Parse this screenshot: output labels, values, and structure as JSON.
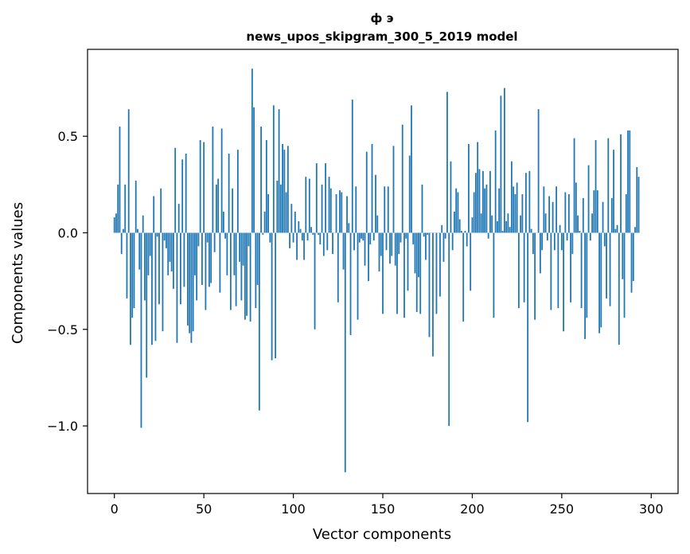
{
  "chart_data": {
    "type": "bar",
    "title_line1": "ф э",
    "title_line2": "news_upos_skipgram_300_5_2019 model",
    "xlabel": "Vector components",
    "ylabel": "Components values",
    "xlim": [
      -15,
      315
    ],
    "ylim": [
      -1.35,
      0.95
    ],
    "xticks": [
      0,
      50,
      100,
      150,
      200,
      250,
      300
    ],
    "xtick_labels": [
      "0",
      "50",
      "100",
      "150",
      "200",
      "250",
      "300"
    ],
    "yticks": [
      -1.0,
      -0.5,
      0.0,
      0.5
    ],
    "ytick_labels": [
      "−1.0",
      "−0.5",
      "0.0",
      "0.5"
    ],
    "bar_color": "#1f77b4",
    "values": [
      0.08,
      0.1,
      0.25,
      0.55,
      -0.11,
      0.02,
      0.25,
      -0.34,
      0.64,
      -0.58,
      -0.44,
      -0.39,
      0.27,
      0.02,
      -0.19,
      -1.01,
      0.09,
      -0.35,
      -0.75,
      -0.22,
      -0.12,
      -0.58,
      0.19,
      -0.56,
      -0.02,
      -0.37,
      0.23,
      -0.51,
      -0.04,
      -0.08,
      -0.22,
      -0.15,
      -0.2,
      -0.29,
      0.44,
      -0.57,
      0.15,
      -0.37,
      0.38,
      -0.28,
      0.41,
      -0.48,
      -0.52,
      -0.57,
      -0.51,
      -0.22,
      -0.35,
      -0.07,
      0.48,
      -0.27,
      0.47,
      -0.4,
      -0.05,
      -0.28,
      -0.26,
      0.55,
      -0.1,
      0.25,
      0.28,
      -0.31,
      0.54,
      0.11,
      -0.03,
      -0.22,
      0.41,
      -0.4,
      0.23,
      -0.22,
      -0.38,
      0.43,
      -0.15,
      -0.35,
      -0.17,
      -0.45,
      -0.43,
      -0.07,
      -0.46,
      0.85,
      0.65,
      -0.39,
      -0.27,
      -0.92,
      0.55,
      -0.01,
      0.11,
      0.48,
      0.2,
      -0.05,
      -0.66,
      0.66,
      -0.65,
      0.27,
      0.64,
      0.25,
      0.46,
      0.43,
      0.21,
      0.45,
      -0.08,
      0.15,
      -0.05,
      0.11,
      -0.14,
      0.06,
      0.02,
      -0.04,
      -0.14,
      0.29,
      -0.04,
      0.28,
      0.03,
      -0.01,
      -0.5,
      0.36,
      -0.01,
      -0.06,
      0.25,
      -0.12,
      0.36,
      -0.09,
      0.29,
      0.23,
      -0.11,
      0.0,
      0.2,
      -0.36,
      0.22,
      0.21,
      -0.19,
      -1.24,
      0.19,
      0.05,
      -0.53,
      0.69,
      -0.09,
      0.24,
      -0.45,
      -0.05,
      -0.03,
      -0.04,
      -0.17,
      0.42,
      -0.25,
      -0.06,
      0.46,
      -0.04,
      0.3,
      0.09,
      -0.2,
      -0.12,
      -0.42,
      0.24,
      -0.09,
      0.24,
      -0.16,
      -0.12,
      0.45,
      -0.17,
      -0.42,
      -0.11,
      -0.05,
      0.56,
      -0.44,
      -0.03,
      -0.3,
      0.4,
      0.66,
      -0.06,
      -0.21,
      -0.41,
      -0.23,
      -0.42,
      0.25,
      -0.02,
      -0.14,
      -0.01,
      -0.54,
      0.0,
      -0.64,
      0.0,
      -0.42,
      0.0,
      -0.33,
      0.04,
      -0.15,
      -0.03,
      0.73,
      -1.0,
      0.37,
      -0.09,
      0.11,
      0.23,
      0.21,
      0.07,
      0.01,
      -0.46,
      0.01,
      -0.07,
      0.46,
      -0.3,
      0.08,
      0.21,
      0.31,
      0.47,
      0.33,
      0.1,
      0.32,
      0.23,
      0.25,
      -0.03,
      0.32,
      0.09,
      -0.44,
      0.53,
      0.06,
      0.23,
      0.71,
      0.01,
      0.75,
      0.06,
      0.1,
      0.03,
      0.37,
      0.24,
      0.2,
      0.26,
      -0.39,
      0.09,
      0.2,
      -0.36,
      0.31,
      -0.98,
      0.32,
      0.02,
      -0.11,
      -0.45,
      0.0,
      0.64,
      -0.21,
      -0.09,
      0.24,
      0.1,
      -0.04,
      0.19,
      -0.4,
      0.16,
      -0.09,
      0.24,
      -0.39,
      0.04,
      -0.09,
      -0.51,
      0.21,
      -0.04,
      0.2,
      -0.36,
      -0.11,
      0.49,
      0.26,
      0.09,
      0.01,
      -0.39,
      0.18,
      -0.55,
      -0.44,
      0.35,
      -0.04,
      0.1,
      0.22,
      0.48,
      0.22,
      -0.52,
      -0.49,
      0.16,
      -0.07,
      -0.34,
      0.49,
      -0.38,
      0.18,
      0.43,
      0.02,
      0.04,
      -0.58,
      0.51,
      -0.24,
      -0.44,
      0.2,
      0.53,
      0.53,
      -0.31,
      -0.25,
      0.03,
      0.34,
      0.29
    ]
  }
}
